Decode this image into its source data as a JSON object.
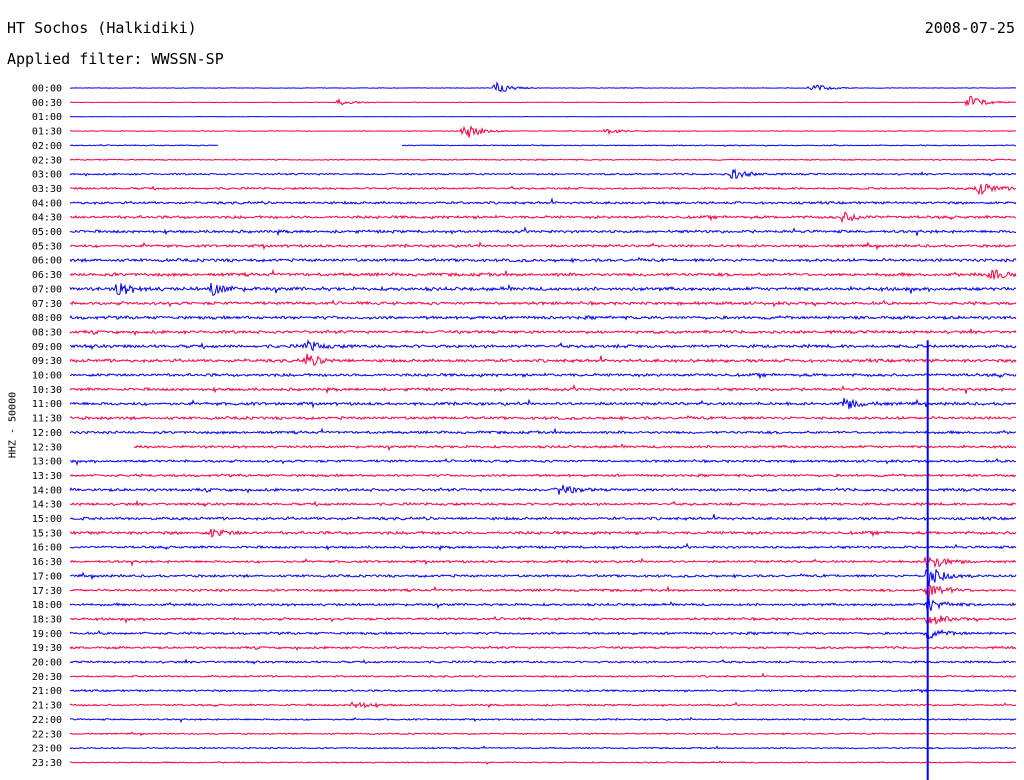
{
  "header": {
    "station": "HT Sochos (Halkidiki)",
    "date": "2008-07-25",
    "filter": "Applied filter: WWSSN-SP"
  },
  "chart_data": {
    "type": "helicorder",
    "title": "HT Sochos (Halkidiki)",
    "date": "2008-07-25",
    "filter": "WWSSN-SP",
    "ylabel": "HHZ - 50000",
    "xlabel": "",
    "row_interval_minutes": 30,
    "row_labels": [
      "00:00",
      "00:30",
      "01:00",
      "01:30",
      "02:00",
      "02:30",
      "03:00",
      "03:30",
      "04:00",
      "04:30",
      "05:00",
      "05:30",
      "06:00",
      "06:30",
      "07:00",
      "07:30",
      "08:00",
      "08:30",
      "09:00",
      "09:30",
      "10:00",
      "10:30",
      "11:00",
      "11:30",
      "12:00",
      "12:30",
      "13:00",
      "13:30",
      "14:00",
      "14:30",
      "15:00",
      "15:30",
      "16:00",
      "16:30",
      "17:00",
      "17:30",
      "18:00",
      "18:30",
      "19:00",
      "19:30",
      "20:00",
      "20:30",
      "21:00",
      "21:30",
      "22:00",
      "22:30",
      "23:00",
      "23:30"
    ],
    "colors": [
      "#0000ff",
      "#ff0040"
    ],
    "noise_level": [
      0.15,
      0.15,
      0.1,
      0.2,
      0.3,
      0.35,
      0.5,
      0.6,
      0.7,
      0.8,
      0.8,
      0.75,
      0.85,
      0.9,
      1.0,
      0.85,
      0.9,
      0.85,
      0.9,
      0.9,
      0.85,
      0.8,
      0.85,
      0.8,
      0.75,
      0.7,
      0.7,
      0.7,
      0.8,
      0.75,
      0.8,
      0.85,
      0.7,
      0.65,
      0.7,
      0.7,
      0.7,
      0.7,
      0.7,
      0.65,
      0.6,
      0.5,
      0.55,
      0.5,
      0.45,
      0.4,
      0.4,
      0.35
    ],
    "events": [
      {
        "row": 0,
        "minute": 13.5,
        "amp": 6
      },
      {
        "row": 0,
        "minute": 23.5,
        "amp": 5
      },
      {
        "row": 1,
        "minute": 8.5,
        "amp": 3
      },
      {
        "row": 1,
        "minute": 28.5,
        "amp": 7
      },
      {
        "row": 3,
        "minute": 12.5,
        "amp": 9
      },
      {
        "row": 3,
        "minute": 17,
        "amp": 3
      },
      {
        "row": 6,
        "minute": 21,
        "amp": 5
      },
      {
        "row": 7,
        "minute": 28.8,
        "amp": 7
      },
      {
        "row": 9,
        "minute": 24.5,
        "amp": 5
      },
      {
        "row": 13,
        "minute": 29.2,
        "amp": 6
      },
      {
        "row": 14,
        "minute": 1.5,
        "amp": 7
      },
      {
        "row": 14,
        "minute": 4.5,
        "amp": 6
      },
      {
        "row": 18,
        "minute": 7.5,
        "amp": 5
      },
      {
        "row": 19,
        "minute": 7.5,
        "amp": 6
      },
      {
        "row": 22,
        "minute": 24.5,
        "amp": 6
      },
      {
        "row": 28,
        "minute": 15.5,
        "amp": 5
      },
      {
        "row": 31,
        "minute": 4.5,
        "amp": 4
      },
      {
        "row": 33,
        "minute": 27.2,
        "amp": 10
      },
      {
        "row": 34,
        "minute": 27.2,
        "amp": 12
      },
      {
        "row": 35,
        "minute": 27.2,
        "amp": 9
      },
      {
        "row": 36,
        "minute": 27.2,
        "amp": 7
      },
      {
        "row": 37,
        "minute": 27.2,
        "amp": 6
      },
      {
        "row": 38,
        "minute": 27.2,
        "amp": 5
      },
      {
        "row": 43,
        "minute": 9,
        "amp": 4
      }
    ],
    "gaps": [
      {
        "row": 4,
        "start_minute": 4.7,
        "end_minute": 10.5
      },
      {
        "row": 25,
        "start_minute": 0,
        "end_minute": 2
      }
    ],
    "vertical_trace": {
      "minute": 27.2,
      "from_row": 18,
      "to_row": 47
    }
  }
}
